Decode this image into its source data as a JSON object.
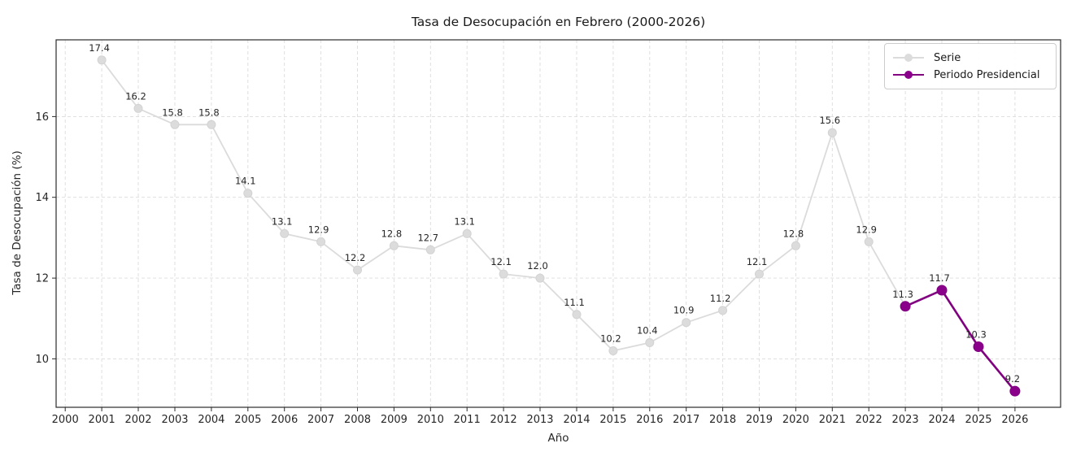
{
  "chart_data": {
    "type": "line",
    "title": "Tasa de Desocupación en Febrero (2000-2026)",
    "xlabel": "Año",
    "ylabel": "Tasa de Desocupación (%)",
    "x_ticks": [
      2000,
      2001,
      2002,
      2003,
      2004,
      2005,
      2006,
      2007,
      2008,
      2009,
      2010,
      2011,
      2012,
      2013,
      2014,
      2015,
      2016,
      2017,
      2018,
      2019,
      2020,
      2021,
      2022,
      2023,
      2024,
      2025,
      2026
    ],
    "y_ticks": [
      10,
      12,
      14,
      16
    ],
    "xlim": [
      1999.75,
      2027.25
    ],
    "ylim": [
      8.8,
      17.9
    ],
    "grid": "dashed",
    "background": "#ffffff",
    "series": [
      {
        "name": "Serie",
        "line_color": "#dbdbdb",
        "marker_color": "#dcdcdc",
        "marker_edge": "#d3d3d3",
        "line_width": 1.8,
        "marker_radius": 5,
        "x": [
          2001,
          2002,
          2003,
          2004,
          2005,
          2006,
          2007,
          2008,
          2009,
          2010,
          2011,
          2012,
          2013,
          2014,
          2015,
          2016,
          2017,
          2018,
          2019,
          2020,
          2021,
          2022,
          2023
        ],
        "values": [
          17.4,
          16.2,
          15.8,
          15.8,
          14.1,
          13.1,
          12.9,
          12.2,
          12.8,
          12.7,
          13.1,
          12.1,
          12.0,
          11.1,
          10.2,
          10.4,
          10.9,
          11.2,
          12.1,
          12.8,
          15.6,
          12.9,
          11.3
        ]
      },
      {
        "name": "Periodo Presidencial",
        "line_color": "#800080",
        "marker_color": "#8b008b",
        "marker_edge": "#800080",
        "line_width": 2.6,
        "marker_radius": 6,
        "x": [
          2023,
          2024,
          2025,
          2026
        ],
        "values": [
          11.3,
          11.7,
          10.3,
          9.2
        ]
      }
    ],
    "point_labels": [
      {
        "x": 2001,
        "y": 17.4,
        "text": "17.4"
      },
      {
        "x": 2002,
        "y": 16.2,
        "text": "16.2"
      },
      {
        "x": 2003,
        "y": 15.8,
        "text": "15.8"
      },
      {
        "x": 2004,
        "y": 15.8,
        "text": "15.8"
      },
      {
        "x": 2005,
        "y": 14.1,
        "text": "14.1"
      },
      {
        "x": 2006,
        "y": 13.1,
        "text": "13.1"
      },
      {
        "x": 2007,
        "y": 12.9,
        "text": "12.9"
      },
      {
        "x": 2008,
        "y": 12.2,
        "text": "12.2"
      },
      {
        "x": 2009,
        "y": 12.8,
        "text": "12.8"
      },
      {
        "x": 2010,
        "y": 12.7,
        "text": "12.7"
      },
      {
        "x": 2011,
        "y": 13.1,
        "text": "13.1"
      },
      {
        "x": 2012,
        "y": 12.1,
        "text": "12.1"
      },
      {
        "x": 2013,
        "y": 12.0,
        "text": "12.0"
      },
      {
        "x": 2014,
        "y": 11.1,
        "text": "11.1"
      },
      {
        "x": 2015,
        "y": 10.2,
        "text": "10.2"
      },
      {
        "x": 2016,
        "y": 10.4,
        "text": "10.4"
      },
      {
        "x": 2017,
        "y": 10.9,
        "text": "10.9"
      },
      {
        "x": 2018,
        "y": 11.2,
        "text": "11.2"
      },
      {
        "x": 2019,
        "y": 12.1,
        "text": "12.1"
      },
      {
        "x": 2020,
        "y": 12.8,
        "text": "12.8"
      },
      {
        "x": 2021,
        "y": 15.6,
        "text": "15.6"
      },
      {
        "x": 2022,
        "y": 12.9,
        "text": "12.9"
      },
      {
        "x": 2023,
        "y": 11.3,
        "text": "11.3"
      },
      {
        "x": 2024,
        "y": 11.7,
        "text": "11.7"
      },
      {
        "x": 2025,
        "y": 10.3,
        "text": "10.3"
      },
      {
        "x": 2026,
        "y": 9.2,
        "text": "9.2"
      }
    ],
    "legend": {
      "position": "upper right",
      "entries": [
        {
          "label": "Serie",
          "line_color": "#dbdbdb",
          "marker_color": "#dcdcdc"
        },
        {
          "label": "Periodo Presidencial",
          "line_color": "#800080",
          "marker_color": "#8b008b"
        }
      ]
    }
  }
}
